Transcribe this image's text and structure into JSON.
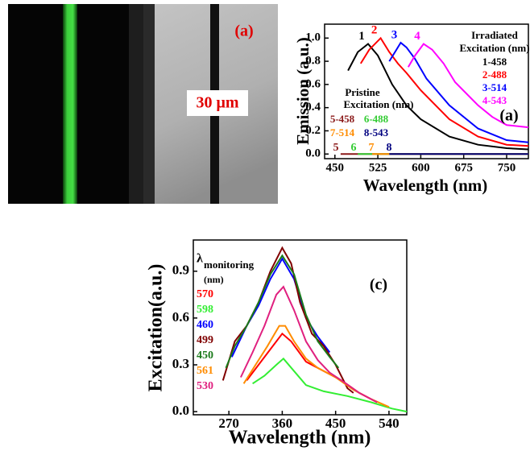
{
  "image": {
    "label": "(a)",
    "scale_bar": "30 μm"
  },
  "chart_data": [
    {
      "type": "line",
      "xlabel": "Wavelength (nm)",
      "ylabel": "Emission (a.u.)",
      "annotation": "(a)",
      "xlim": [
        432,
        788
      ],
      "xticks": [
        450,
        525,
        600,
        675,
        750
      ],
      "ylim": [
        -0.04,
        1.12
      ],
      "yticks": [
        {
          "value": 0,
          "label": "0.0"
        },
        0.2,
        0.4,
        0.6,
        0.8,
        {
          "value": 1,
          "label": "1.0"
        }
      ],
      "irradiated_legend_title": [
        "Irradiated",
        "Excitation (nm)"
      ],
      "pristine_legend_title": [
        "Pristine",
        "Excitation (nm)"
      ],
      "series": [
        {
          "name": "1-458",
          "tag": "1",
          "color": "#000000",
          "x": [
            473,
            490,
            508,
            525,
            550,
            575,
            600,
            650,
            700,
            750,
            788
          ],
          "values": [
            0.72,
            0.88,
            0.95,
            0.85,
            0.6,
            0.42,
            0.3,
            0.15,
            0.08,
            0.05,
            0.04
          ]
        },
        {
          "name": "2-488",
          "tag": "2",
          "color": "#ff0000",
          "x": [
            495,
            510,
            530,
            545,
            560,
            575,
            600,
            650,
            700,
            750,
            788
          ],
          "values": [
            0.78,
            0.9,
            1.0,
            0.88,
            0.78,
            0.7,
            0.55,
            0.3,
            0.15,
            0.08,
            0.07
          ]
        },
        {
          "name": "3-514",
          "tag": "3",
          "color": "#0000ff",
          "x": [
            545,
            555,
            565,
            575,
            590,
            610,
            650,
            700,
            750,
            788
          ],
          "values": [
            0.8,
            0.88,
            0.96,
            0.92,
            0.82,
            0.65,
            0.42,
            0.22,
            0.12,
            0.1
          ]
        },
        {
          "name": "4-543",
          "tag": "4",
          "color": "#ff00ff",
          "x": [
            578,
            590,
            605,
            620,
            640,
            660,
            700,
            725,
            750,
            788
          ],
          "values": [
            0.75,
            0.85,
            0.95,
            0.9,
            0.78,
            0.62,
            0.42,
            0.32,
            0.25,
            0.23
          ]
        },
        {
          "name": "5-458",
          "tag": "5",
          "color": "#8b1a1a",
          "x": [
            460,
            788
          ],
          "values": [
            0,
            0
          ]
        },
        {
          "name": "6-488",
          "tag": "6",
          "color": "#33cc33",
          "x": [
            490,
            788
          ],
          "values": [
            0,
            0
          ]
        },
        {
          "name": "7-514",
          "tag": "7",
          "color": "#ff8c00",
          "x": [
            515,
            788
          ],
          "values": [
            0,
            0
          ]
        },
        {
          "name": "8-543",
          "tag": "8",
          "color": "#000080",
          "x": [
            545,
            788
          ],
          "values": [
            0,
            0
          ]
        }
      ]
    },
    {
      "type": "line",
      "xlabel": "Wavelength (nm)",
      "ylabel": "Excitation(a.u.)",
      "annotation": "(c)",
      "xlim": [
        210,
        570
      ],
      "xticks": [
        270,
        360,
        450,
        540
      ],
      "ylim": [
        -0.02,
        1.1
      ],
      "yticks": [
        {
          "value": 0,
          "label": "0.0"
        },
        0.3,
        0.6,
        0.9
      ],
      "legend_title": "λ",
      "legend_title_sub": "monitoring",
      "legend_unit": "(nm)",
      "series": [
        {
          "name": "570",
          "color": "#ff0000",
          "x": [
            300,
            320,
            340,
            360,
            375,
            400,
            430,
            460,
            490,
            520
          ],
          "values": [
            0.2,
            0.3,
            0.4,
            0.5,
            0.45,
            0.32,
            0.26,
            0.2,
            0.12,
            0.06
          ]
        },
        {
          "name": "598",
          "color": "#33ee33",
          "x": [
            310,
            330,
            350,
            362,
            380,
            400,
            430,
            470,
            510,
            545,
            570
          ],
          "values": [
            0.18,
            0.23,
            0.3,
            0.34,
            0.26,
            0.17,
            0.13,
            0.1,
            0.06,
            0.02,
            0.0
          ]
        },
        {
          "name": "460",
          "color": "#0000ff",
          "x": [
            275,
            300,
            320,
            340,
            360,
            380,
            400,
            420,
            440
          ],
          "values": [
            0.35,
            0.55,
            0.68,
            0.85,
            0.98,
            0.85,
            0.6,
            0.48,
            0.38
          ]
        },
        {
          "name": "499",
          "color": "#800000",
          "x": [
            260,
            280,
            300,
            320,
            340,
            360,
            375,
            390,
            410,
            430,
            450,
            470,
            480
          ],
          "values": [
            0.2,
            0.45,
            0.55,
            0.7,
            0.9,
            1.05,
            0.95,
            0.7,
            0.5,
            0.42,
            0.3,
            0.15,
            0.12
          ]
        },
        {
          "name": "450",
          "color": "#1a7a1a",
          "x": [
            265,
            280,
            300,
            320,
            340,
            360,
            380,
            400,
            420,
            440,
            455
          ],
          "values": [
            0.28,
            0.42,
            0.55,
            0.7,
            0.88,
            1.0,
            0.88,
            0.62,
            0.45,
            0.35,
            0.28
          ]
        },
        {
          "name": "561",
          "color": "#ff8c00",
          "x": [
            295,
            315,
            335,
            355,
            365,
            380,
            400,
            420,
            450,
            480,
            510,
            540
          ],
          "values": [
            0.18,
            0.3,
            0.42,
            0.55,
            0.55,
            0.45,
            0.34,
            0.28,
            0.22,
            0.14,
            0.08,
            0.03
          ]
        },
        {
          "name": "530",
          "color": "#e0207f",
          "x": [
            290,
            310,
            330,
            350,
            362,
            380,
            400,
            420,
            440,
            460,
            490,
            520
          ],
          "values": [
            0.22,
            0.38,
            0.55,
            0.75,
            0.8,
            0.65,
            0.45,
            0.33,
            0.25,
            0.2,
            0.12,
            0.06
          ]
        }
      ]
    }
  ]
}
